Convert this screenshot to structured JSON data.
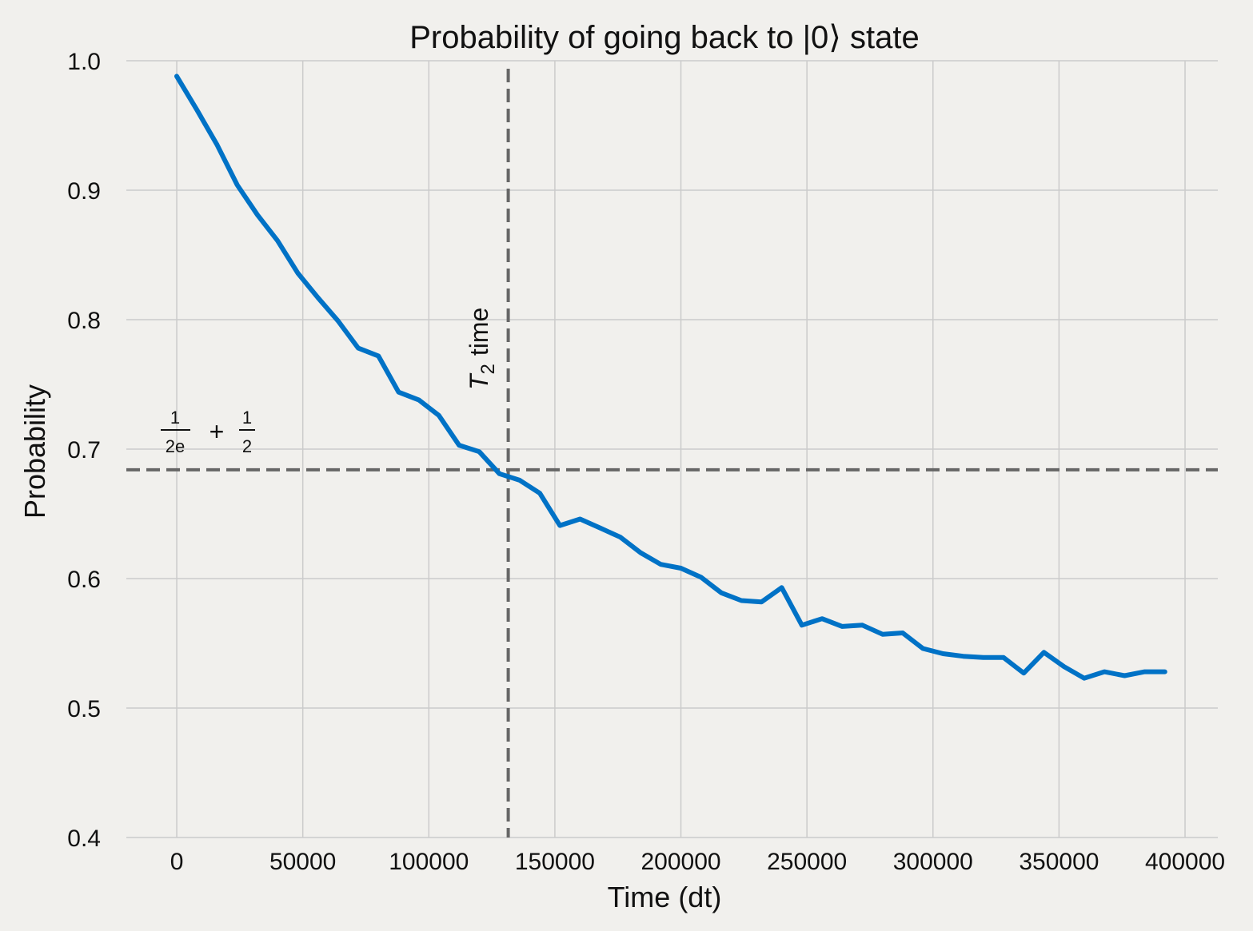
{
  "chart_data": {
    "type": "line",
    "title": "Probability of going back to |0⟩ state",
    "xlabel": "Time (dt)",
    "ylabel": "Probability",
    "xlim": [
      -20000,
      413000
    ],
    "ylim": [
      0.4,
      1.0
    ],
    "xticks": [
      0,
      50000,
      100000,
      150000,
      200000,
      250000,
      300000,
      350000,
      400000
    ],
    "yticks": [
      0.4,
      0.5,
      0.6,
      0.7,
      0.8,
      0.9,
      1.0
    ],
    "grid": true,
    "line_color": "#0072c6",
    "ref_line_color": "#666666",
    "series": [
      {
        "values_x": [
          0,
          8000,
          16000,
          24000,
          32000,
          40000,
          48000,
          56000,
          64000,
          72000,
          80000,
          88000,
          96000,
          104000,
          112000,
          120000,
          128000,
          136000,
          144000,
          152000,
          160000,
          168000,
          176000,
          184000,
          192000,
          200000,
          208000,
          216000,
          224000,
          232000,
          240000,
          248000,
          256000,
          264000,
          272000,
          280000,
          288000,
          296000,
          304000,
          312000,
          320000,
          328000,
          336000,
          344000,
          352000,
          360000,
          368000,
          376000,
          384000,
          392000
        ],
        "values_y": [
          0.988,
          0.962,
          0.935,
          0.904,
          0.881,
          0.861,
          0.836,
          0.817,
          0.799,
          0.778,
          0.772,
          0.744,
          0.738,
          0.726,
          0.703,
          0.698,
          0.681,
          0.676,
          0.666,
          0.641,
          0.646,
          0.639,
          0.632,
          0.62,
          0.611,
          0.608,
          0.601,
          0.589,
          0.583,
          0.582,
          0.593,
          0.564,
          0.569,
          0.563,
          0.564,
          0.557,
          0.558,
          0.546,
          0.542,
          0.54,
          0.539,
          0.539,
          0.527,
          0.543,
          0.532,
          0.523,
          0.528,
          0.525,
          0.528,
          0.528
        ]
      }
    ],
    "reference_lines": {
      "horizontal_y": 0.684,
      "horizontal_label_num1": "1",
      "horizontal_label_den1": "2e",
      "horizontal_label_plus": "+",
      "horizontal_label_num2": "1",
      "horizontal_label_den2": "2",
      "vertical_x": 131500,
      "vertical_label_T": "T",
      "vertical_label_sub": "2",
      "vertical_label_rest": "time"
    }
  }
}
